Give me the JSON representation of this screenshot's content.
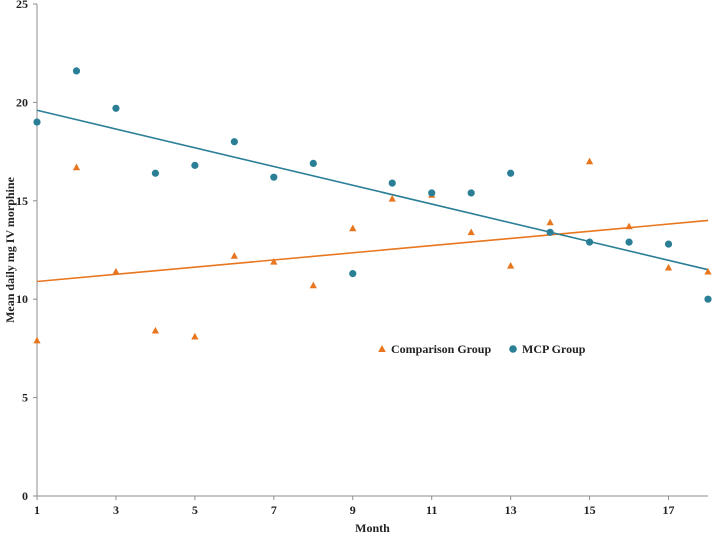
{
  "chart_data": {
    "type": "scatter",
    "xlabel": "Month",
    "ylabel": "Mean daily mg IV morphine",
    "xlim": [
      1,
      18
    ],
    "ylim": [
      0,
      25
    ],
    "xticks": [
      1,
      3,
      5,
      7,
      9,
      11,
      13,
      15,
      17
    ],
    "yticks": [
      0,
      5,
      10,
      15,
      20,
      25
    ],
    "grid": false,
    "legend_position": "center-right",
    "series": [
      {
        "name": "Comparison Group",
        "marker": "triangle",
        "color": "#E8761E",
        "x": [
          1,
          2,
          3,
          4,
          5,
          6,
          7,
          8,
          9,
          10,
          11,
          12,
          13,
          14,
          15,
          16,
          17,
          18
        ],
        "y": [
          7.9,
          16.7,
          11.4,
          8.4,
          8.1,
          12.2,
          11.9,
          10.7,
          13.6,
          15.1,
          15.3,
          13.4,
          11.7,
          13.9,
          17.0,
          13.7,
          11.6,
          11.4
        ],
        "trendline": {
          "start": [
            1,
            10.9
          ],
          "end": [
            18,
            14.0
          ]
        }
      },
      {
        "name": "MCP Group",
        "marker": "circle",
        "color": "#2A7F96",
        "x": [
          1,
          2,
          3,
          4,
          5,
          6,
          7,
          8,
          9,
          10,
          11,
          12,
          13,
          14,
          15,
          16,
          17,
          18
        ],
        "y": [
          19.0,
          21.6,
          19.7,
          16.4,
          16.8,
          18.0,
          16.2,
          16.9,
          11.3,
          15.9,
          15.4,
          15.4,
          16.4,
          13.4,
          12.9,
          12.9,
          12.8,
          10.0
        ],
        "trendline": {
          "start": [
            1,
            19.6
          ],
          "end": [
            18,
            11.5
          ]
        }
      }
    ]
  }
}
